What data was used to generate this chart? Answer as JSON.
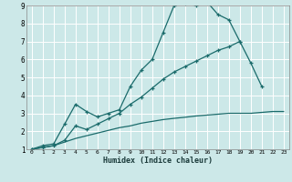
{
  "xlabel": "Humidex (Indice chaleur)",
  "bg_color": "#cce8e8",
  "grid_color": "#ffffff",
  "line_color": "#1a6b6b",
  "xlim": [
    -0.5,
    23.5
  ],
  "ylim": [
    1,
    9
  ],
  "xticks": [
    0,
    1,
    2,
    3,
    4,
    5,
    6,
    7,
    8,
    9,
    10,
    11,
    12,
    13,
    14,
    15,
    16,
    17,
    18,
    19,
    20,
    21,
    22,
    23
  ],
  "yticks": [
    1,
    2,
    3,
    4,
    5,
    6,
    7,
    8,
    9
  ],
  "series": [
    {
      "x": [
        0,
        1,
        2,
        3,
        4,
        5,
        6,
        7,
        8,
        9,
        10,
        11,
        12,
        13,
        14,
        15,
        16,
        17,
        18,
        19
      ],
      "y": [
        1.0,
        1.2,
        1.3,
        2.4,
        3.5,
        3.1,
        2.8,
        3.0,
        3.2,
        4.5,
        5.4,
        6.0,
        7.5,
        9.0,
        9.1,
        9.0,
        9.2,
        8.5,
        8.2,
        7.0
      ],
      "has_markers": true
    },
    {
      "x": [
        0,
        1,
        2,
        3,
        4,
        5,
        6,
        7,
        8,
        9,
        10,
        11,
        12,
        13,
        14,
        15,
        16,
        17,
        18,
        19,
        20,
        21
      ],
      "y": [
        1.0,
        1.1,
        1.2,
        1.5,
        2.3,
        2.1,
        2.4,
        2.7,
        3.0,
        3.5,
        3.9,
        4.4,
        4.9,
        5.3,
        5.6,
        5.9,
        6.2,
        6.5,
        6.7,
        7.0,
        5.8,
        4.5
      ],
      "has_markers": true
    },
    {
      "x": [
        0,
        1,
        2,
        3,
        4,
        5,
        6,
        7,
        8,
        9,
        10,
        11,
        12,
        13,
        14,
        15,
        16,
        17,
        18,
        19,
        20,
        21,
        22,
        23
      ],
      "y": [
        1.0,
        1.1,
        1.2,
        1.4,
        1.6,
        1.75,
        1.9,
        2.05,
        2.2,
        2.3,
        2.45,
        2.55,
        2.65,
        2.72,
        2.78,
        2.85,
        2.9,
        2.95,
        3.0,
        3.0,
        3.0,
        3.05,
        3.1,
        3.1
      ],
      "has_markers": false
    }
  ]
}
